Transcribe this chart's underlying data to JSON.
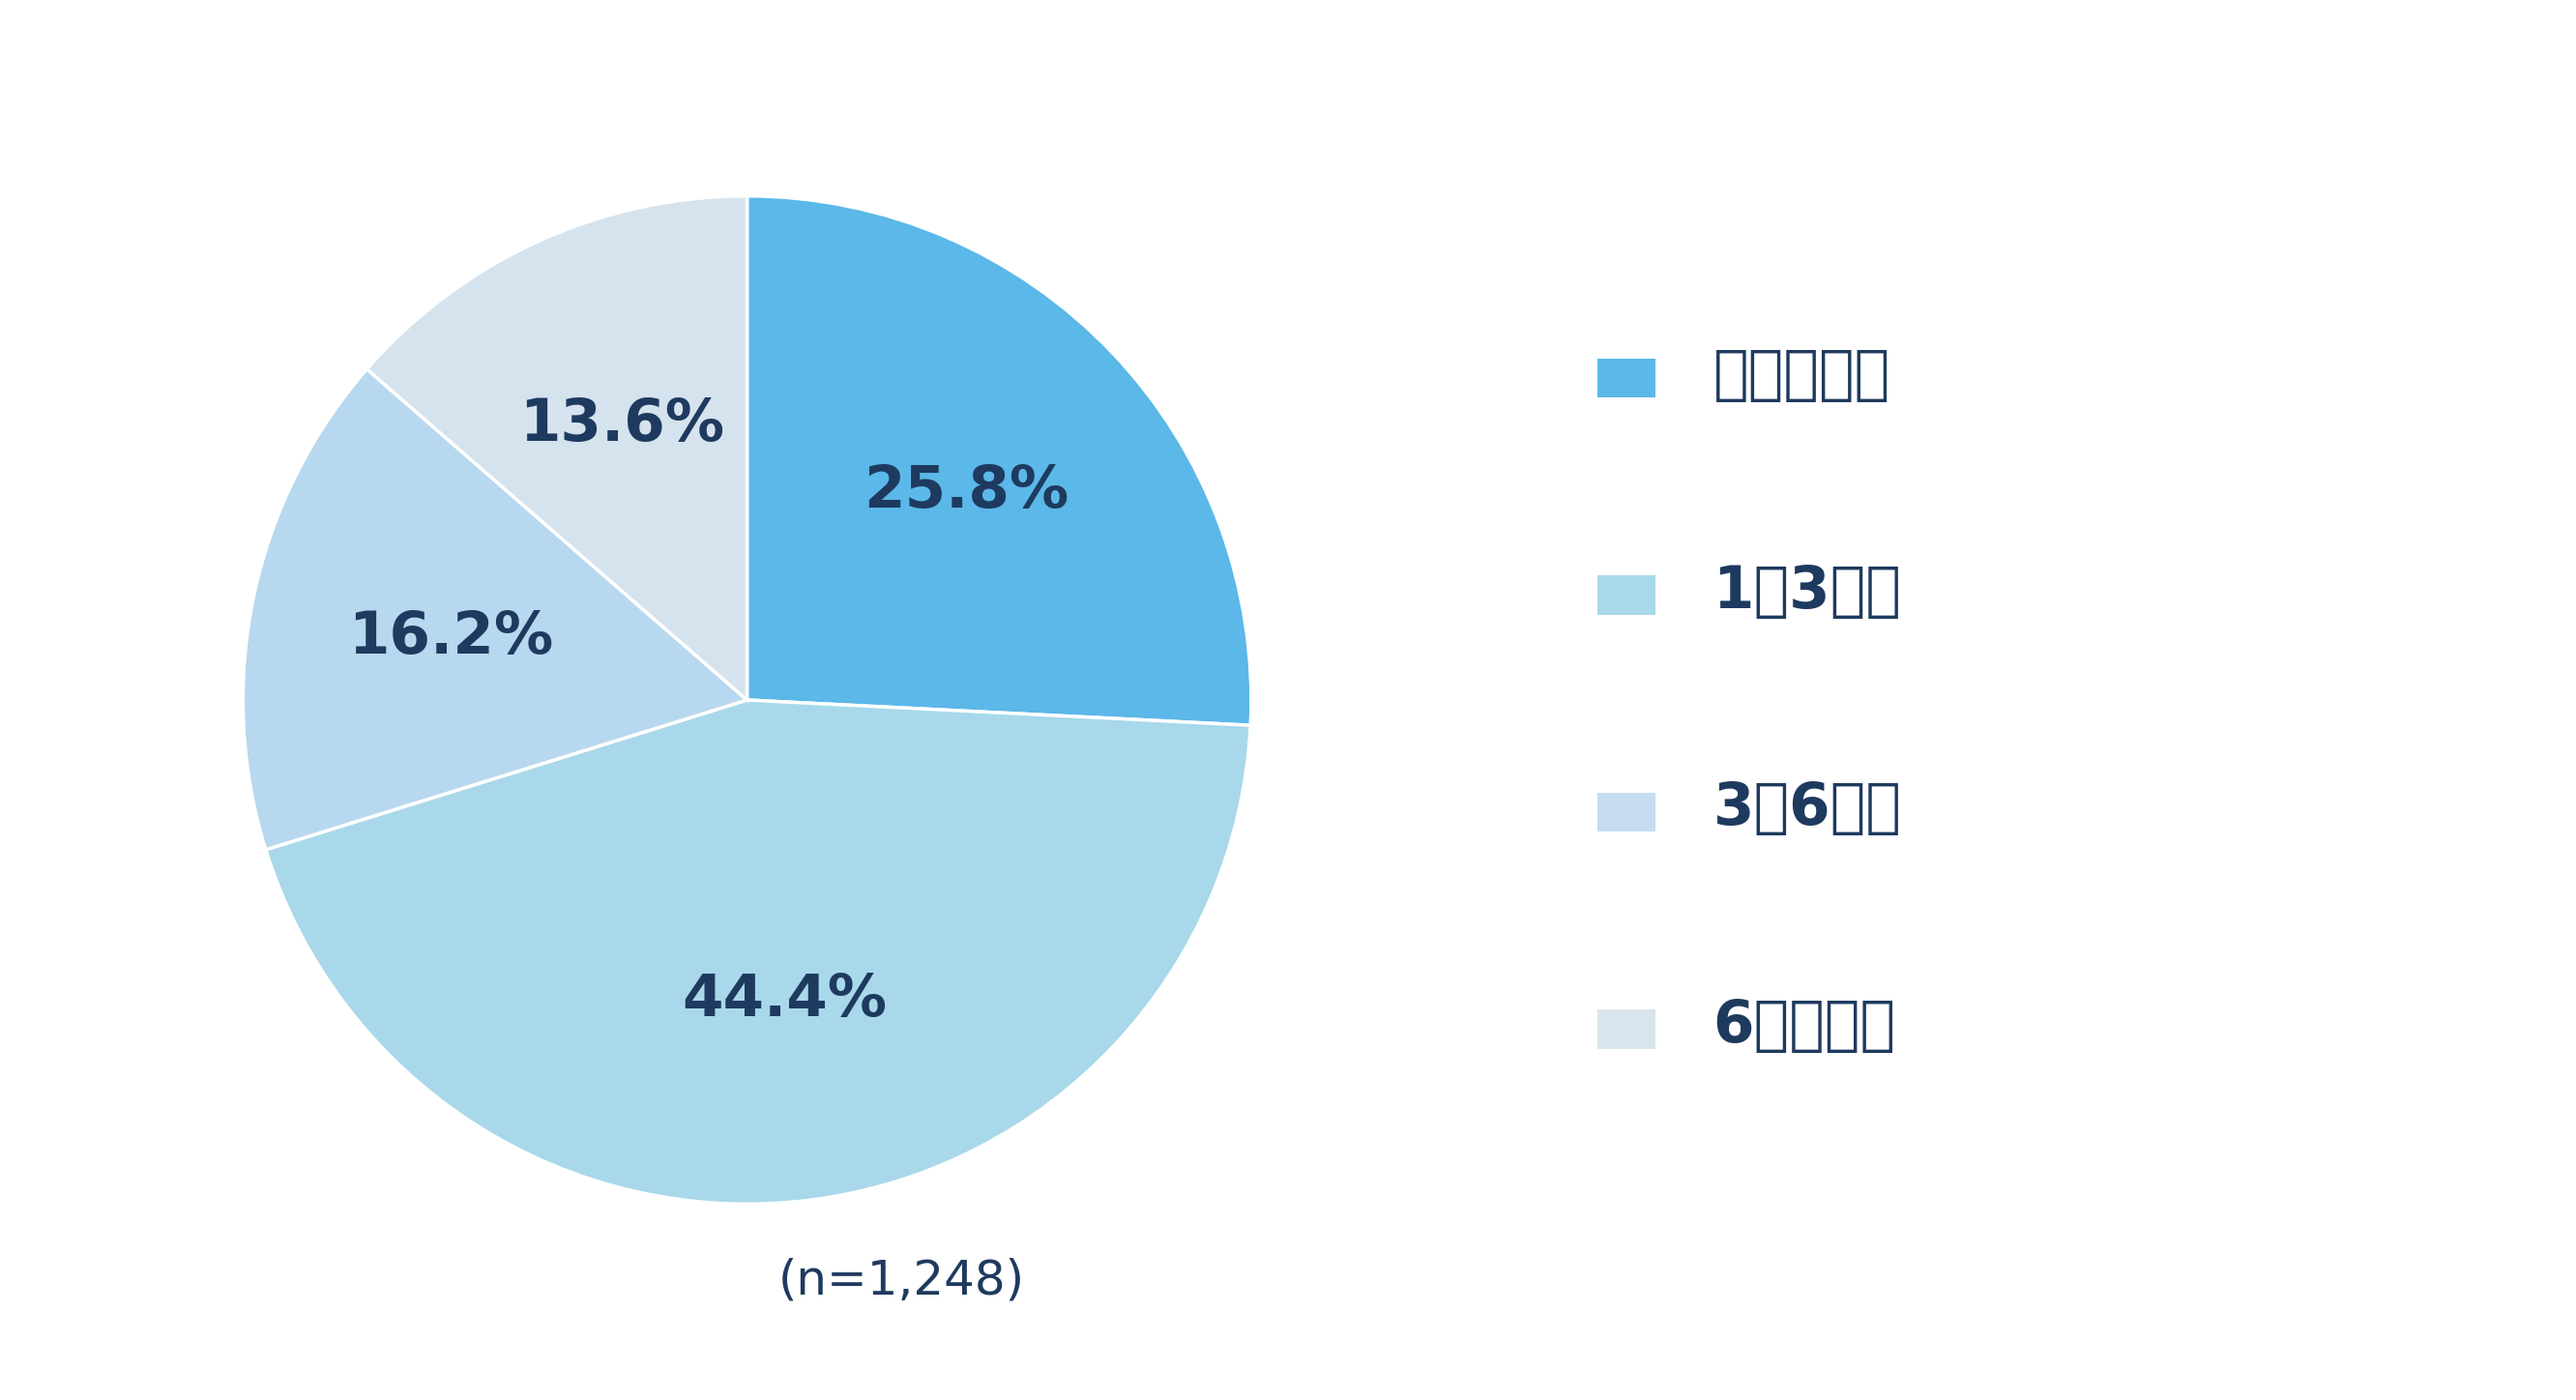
{
  "slices": [
    25.8,
    44.4,
    16.2,
    13.6
  ],
  "labels": [
    "25.8%",
    "44.4%",
    "16.2%",
    "13.6%"
  ],
  "colors": [
    "#5BB8E8",
    "#A8D8EA",
    "#B8D8EF",
    "#D5E3EE"
  ],
  "legend_labels": [
    "ㇶケ月未満",
    "1～3ケ月",
    "3～6ケ月",
    "6ケ月以上"
  ],
  "legend_colors": [
    "#5BB8E8",
    "#A8D8EA",
    "#C5DCF0",
    "#D8E5EE"
  ],
  "note": "(n=1,248)",
  "text_color": "#1e3a5f",
  "background_color": "#ffffff",
  "startangle": 90,
  "label_fontsize": 44,
  "legend_fontsize": 44,
  "note_fontsize": 36
}
